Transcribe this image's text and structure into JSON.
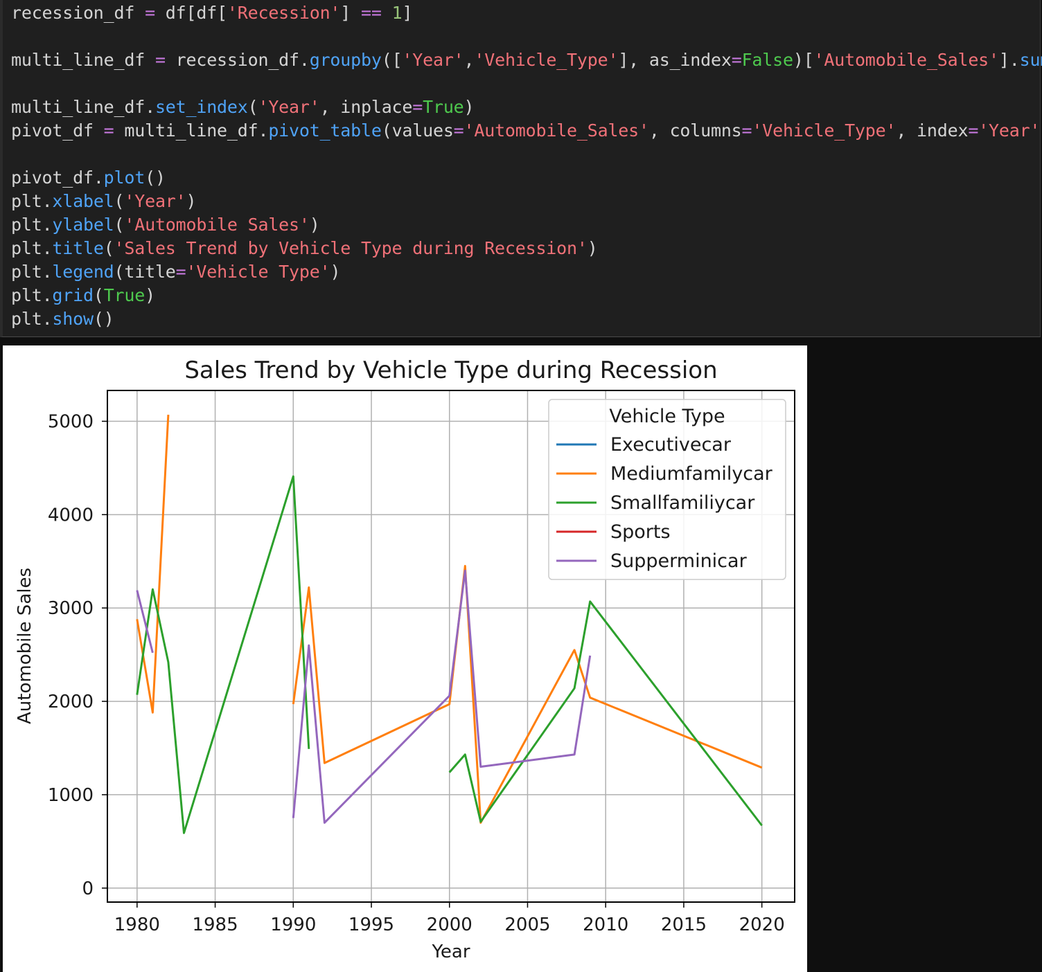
{
  "code_cell": {
    "lines": [
      "recession_df = df[df['Recession'] == 1]",
      "",
      "multi_line_df = recession_df.groupby(['Year','Vehicle_Type'], as_index=False)['Automobile_Sales'].sum()",
      "",
      "multi_line_df.set_index('Year', inplace=True)",
      "pivot_df = multi_line_df.pivot_table(values='Automobile_Sales', columns='Vehicle_Type', index='Year')",
      "",
      "pivot_df.plot()",
      "plt.xlabel('Year')",
      "plt.ylabel('Automobile Sales')",
      "plt.title('Sales Trend by Vehicle Type during Recession')",
      "plt.legend(title='Vehicle Type')",
      "plt.grid(True)",
      "plt.show()"
    ]
  },
  "chart_data": {
    "type": "line",
    "title": "Sales Trend by Vehicle Type during Recession",
    "xlabel": "Year",
    "ylabel": "Automobile Sales",
    "xlim": [
      1978.1,
      2022.1
    ],
    "ylim": [
      -150,
      5330
    ],
    "x_ticks": [
      1980,
      1985,
      1990,
      1995,
      2000,
      2005,
      2010,
      2015,
      2020
    ],
    "y_ticks": [
      0,
      1000,
      2000,
      3000,
      4000,
      5000
    ],
    "grid": true,
    "legend": {
      "title": "Vehicle Type",
      "placement": "upper right"
    },
    "series": [
      {
        "name": "Executivecar",
        "color": "#1f77b4",
        "points": []
      },
      {
        "name": "Mediumfamilycar",
        "color": "#ff7f0e",
        "points": [
          [
            1980,
            2880
          ],
          [
            1981,
            1880
          ],
          [
            1982,
            5070
          ],
          null,
          [
            1990,
            1970
          ],
          [
            1991,
            3220
          ],
          [
            1992,
            1340
          ],
          [
            2000,
            1970
          ],
          [
            2001,
            3450
          ],
          [
            2002,
            700
          ],
          [
            2008,
            2550
          ],
          [
            2009,
            2040
          ],
          [
            2020,
            1290
          ]
        ]
      },
      {
        "name": "Smallfamiliycar",
        "color": "#2ca02c",
        "points": [
          [
            1980,
            2070
          ],
          [
            1981,
            3200
          ],
          [
            1982,
            2420
          ],
          [
            1983,
            590
          ],
          [
            1990,
            4410
          ],
          [
            1991,
            1490
          ],
          null,
          [
            2000,
            1240
          ],
          [
            2001,
            1430
          ],
          [
            2002,
            710
          ],
          [
            2008,
            2140
          ],
          [
            2009,
            3070
          ],
          [
            2020,
            670
          ]
        ]
      },
      {
        "name": "Sports",
        "color": "#d62728",
        "points": []
      },
      {
        "name": "Supperminicar",
        "color": "#9467bd",
        "points": [
          [
            1980,
            3190
          ],
          [
            1981,
            2520
          ],
          null,
          [
            1990,
            750
          ],
          [
            1991,
            2600
          ],
          [
            1992,
            700
          ],
          [
            2000,
            2060
          ],
          [
            2001,
            3400
          ],
          [
            2002,
            1300
          ],
          [
            2008,
            1430
          ],
          [
            2009,
            2490
          ]
        ]
      }
    ]
  }
}
